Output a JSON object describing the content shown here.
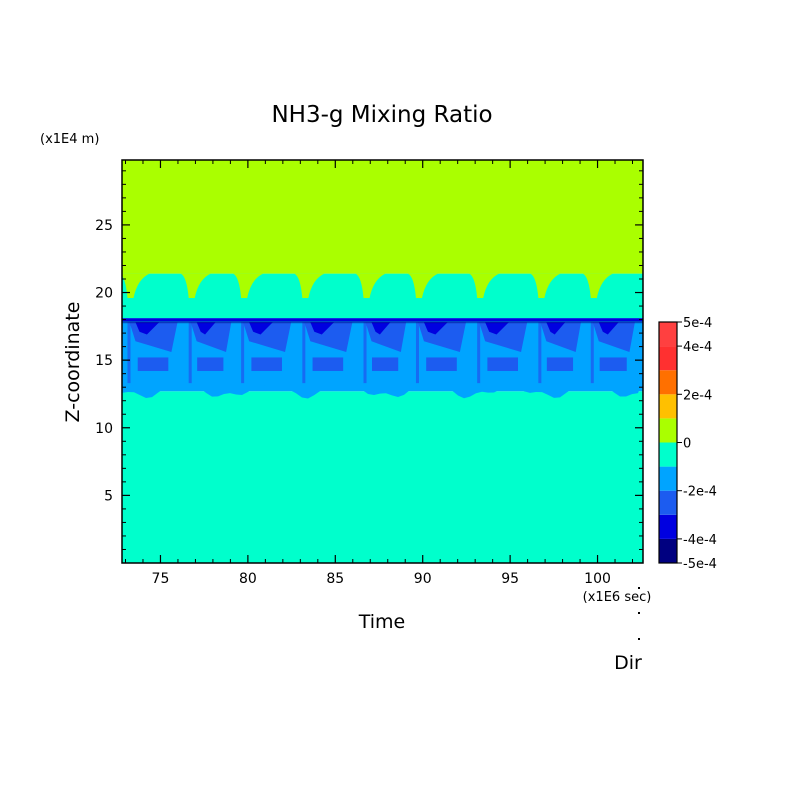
{
  "chart_data": {
    "type": "heatmap",
    "title": "NH3-g Mixing Ratio",
    "xlabel": "Time",
    "ylabel": "Z-coordinate",
    "x_unit": "(x1E6 sec)",
    "y_unit": "(x1E4 m)",
    "footer_label": "Dir",
    "xlim": [
      72.8,
      102.6
    ],
    "ylim": [
      0.0,
      29.8
    ],
    "x_ticks": [
      75,
      80,
      85,
      90,
      95,
      100
    ],
    "x_tick_labels": [
      "75",
      "80",
      "85",
      "90",
      "95",
      "100"
    ],
    "y_ticks": [
      5,
      10,
      15,
      20,
      25
    ],
    "y_tick_labels": [
      "5",
      "10",
      "15",
      "20",
      "25"
    ],
    "grid": false,
    "colorbar": {
      "levels": [
        -0.0005,
        -0.0004,
        -0.0003,
        -0.0002,
        -0.0001,
        0,
        0.0001,
        0.0002,
        0.0003,
        0.0004,
        0.0005
      ],
      "colors": [
        "#000080",
        "#0000e0",
        "#1c5cf0",
        "#00a4ff",
        "#00ffcc",
        "#aaff00",
        "#ffc000",
        "#ff7000",
        "#ff3030",
        "#ff4040"
      ],
      "tick_values": [
        0.0005,
        0.0004,
        0.0002,
        0,
        -0.0002,
        -0.0004,
        -0.0005
      ],
      "tick_labels": [
        "5e-4",
        "4e-4",
        "2e-4",
        "0",
        "-2e-4",
        "-4e-4",
        "-5e-4"
      ]
    },
    "bands": [
      {
        "y_from": 0.0,
        "y_to": 12.7,
        "value_level": "-1e-4 to 0",
        "color": "#00ffcc"
      },
      {
        "y_from": 12.7,
        "y_to": 18.1,
        "value_level": "-3e-4 to -1e-4",
        "color": "#00a4ff"
      },
      {
        "y_from": 18.1,
        "y_to": 21.4,
        "value_level": "-1e-4 to 0",
        "color": "#00ffcc"
      },
      {
        "y_from": 21.4,
        "y_to": 29.8,
        "value_level": "0 to 1e-4",
        "color": "#aaff00"
      }
    ],
    "cycle_times": [
      73.0,
      76.5,
      79.5,
      83.0,
      86.5,
      89.5,
      93.0,
      96.5,
      99.5
    ]
  }
}
